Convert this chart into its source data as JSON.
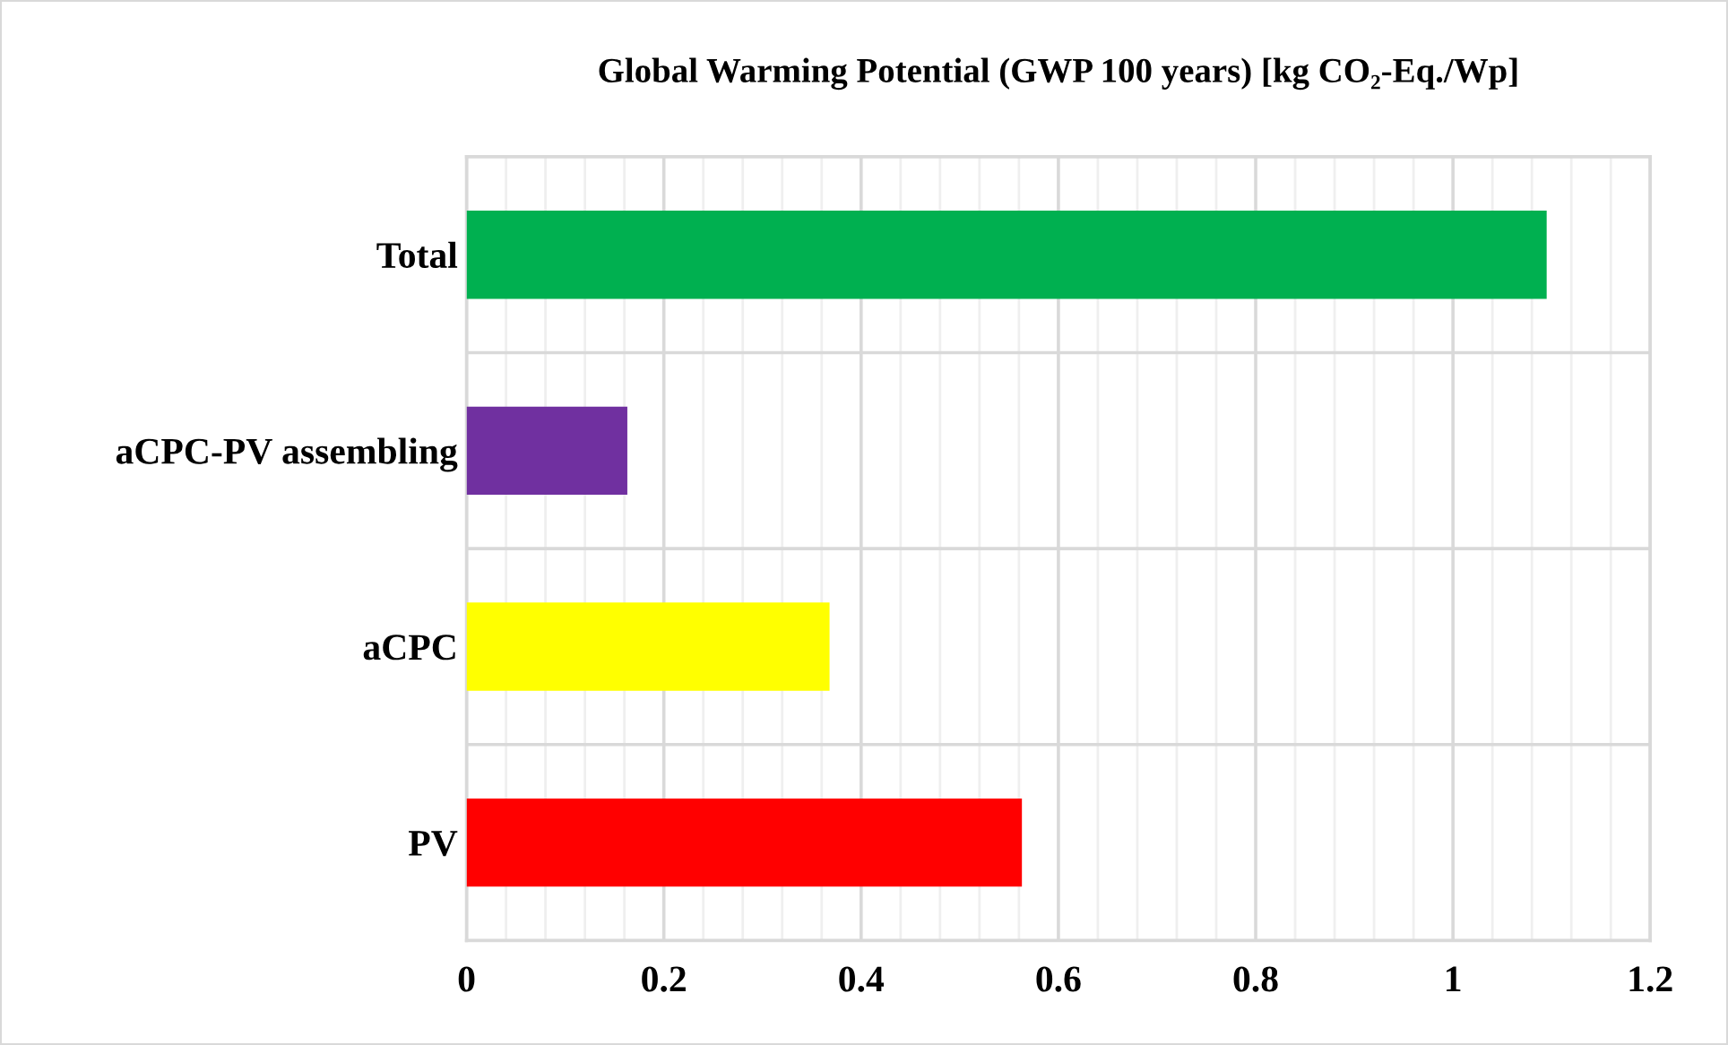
{
  "chart_data": {
    "type": "bar",
    "orientation": "horizontal",
    "title": "Global Warming Potential (GWP 100 years) [kg CO₂-Eq./Wp]",
    "categories": [
      "Total",
      "aCPC-PV assembling",
      "aCPC",
      "PV"
    ],
    "values": [
      1.095,
      0.163,
      0.368,
      0.563
    ],
    "colors": [
      "#00b050",
      "#7030a0",
      "#ffff00",
      "#ff0000"
    ],
    "xlim": [
      0,
      1.2
    ],
    "xticks": [
      0,
      0.2,
      0.4,
      0.6,
      0.8,
      1,
      1.2
    ],
    "grid": true
  }
}
